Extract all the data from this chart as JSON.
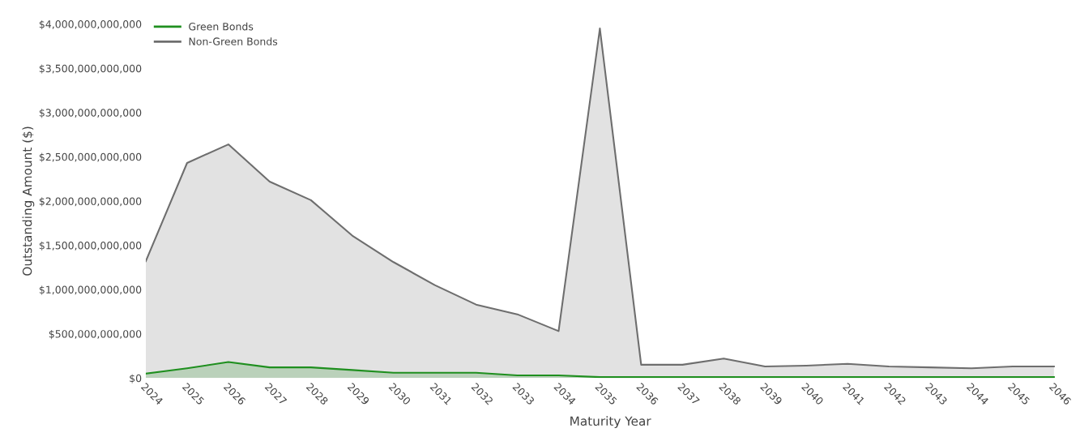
{
  "chart_data": {
    "type": "area",
    "xlabel": "Maturity Year",
    "ylabel": "Outstanding Amount ($)",
    "categories": [
      "2024",
      "2025",
      "2026",
      "2027",
      "2028",
      "2029",
      "2030",
      "2031",
      "2032",
      "2033",
      "2034",
      "2035",
      "2036",
      "2037",
      "2038",
      "2039",
      "2040",
      "2041",
      "2042",
      "2043",
      "2044",
      "2045",
      "2046"
    ],
    "series": [
      {
        "name": "Green Bonds",
        "color": "#1f8f1f",
        "values": [
          50000000000,
          110000000000,
          180000000000,
          120000000000,
          120000000000,
          90000000000,
          60000000000,
          60000000000,
          60000000000,
          30000000000,
          30000000000,
          10000000000,
          10000000000,
          10000000000,
          10000000000,
          10000000000,
          10000000000,
          10000000000,
          10000000000,
          10000000000,
          10000000000,
          10000000000,
          10000000000
        ]
      },
      {
        "name": "Non-Green Bonds",
        "color": "#6e6e6e",
        "values": [
          1320000000000,
          2430000000000,
          2640000000000,
          2220000000000,
          2010000000000,
          1610000000000,
          1310000000000,
          1050000000000,
          830000000000,
          720000000000,
          530000000000,
          3950000000000,
          150000000000,
          150000000000,
          220000000000,
          130000000000,
          140000000000,
          160000000000,
          130000000000,
          120000000000,
          110000000000,
          130000000000,
          130000000000
        ]
      }
    ],
    "ylim": [
      0,
      4000000000000
    ],
    "yticks": [
      {
        "value": 0,
        "label": "$0"
      },
      {
        "value": 500000000000,
        "label": "$500,000,000,000"
      },
      {
        "value": 1000000000000,
        "label": "$1,000,000,000,000"
      },
      {
        "value": 1500000000000,
        "label": "$1,500,000,000,000"
      },
      {
        "value": 2000000000000,
        "label": "$2,000,000,000,000"
      },
      {
        "value": 2500000000000,
        "label": "$2,500,000,000,000"
      },
      {
        "value": 3000000000000,
        "label": "$3,000,000,000,000"
      },
      {
        "value": 3500000000000,
        "label": "$3,500,000,000,000"
      },
      {
        "value": 4000000000000,
        "label": "$4,000,000,000,000"
      }
    ],
    "legend": "top left"
  }
}
